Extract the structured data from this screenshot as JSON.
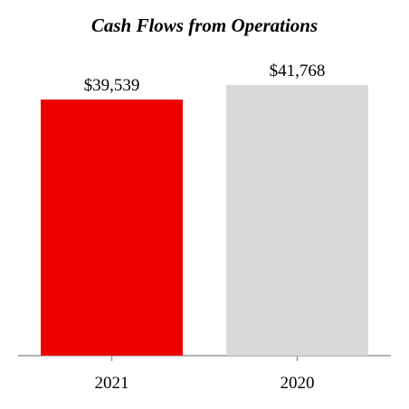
{
  "chart_data": {
    "type": "bar",
    "title": "Cash Flows from Operations",
    "categories": [
      "2021",
      "2020"
    ],
    "values": [
      39539,
      41768
    ],
    "value_labels": [
      "$39,539",
      "$41,768"
    ],
    "colors": [
      "#ee0000",
      "#d9d9d9"
    ],
    "axis_color": "#999999",
    "ylim": [
      0,
      44000
    ],
    "grid": false,
    "legend": "none"
  }
}
